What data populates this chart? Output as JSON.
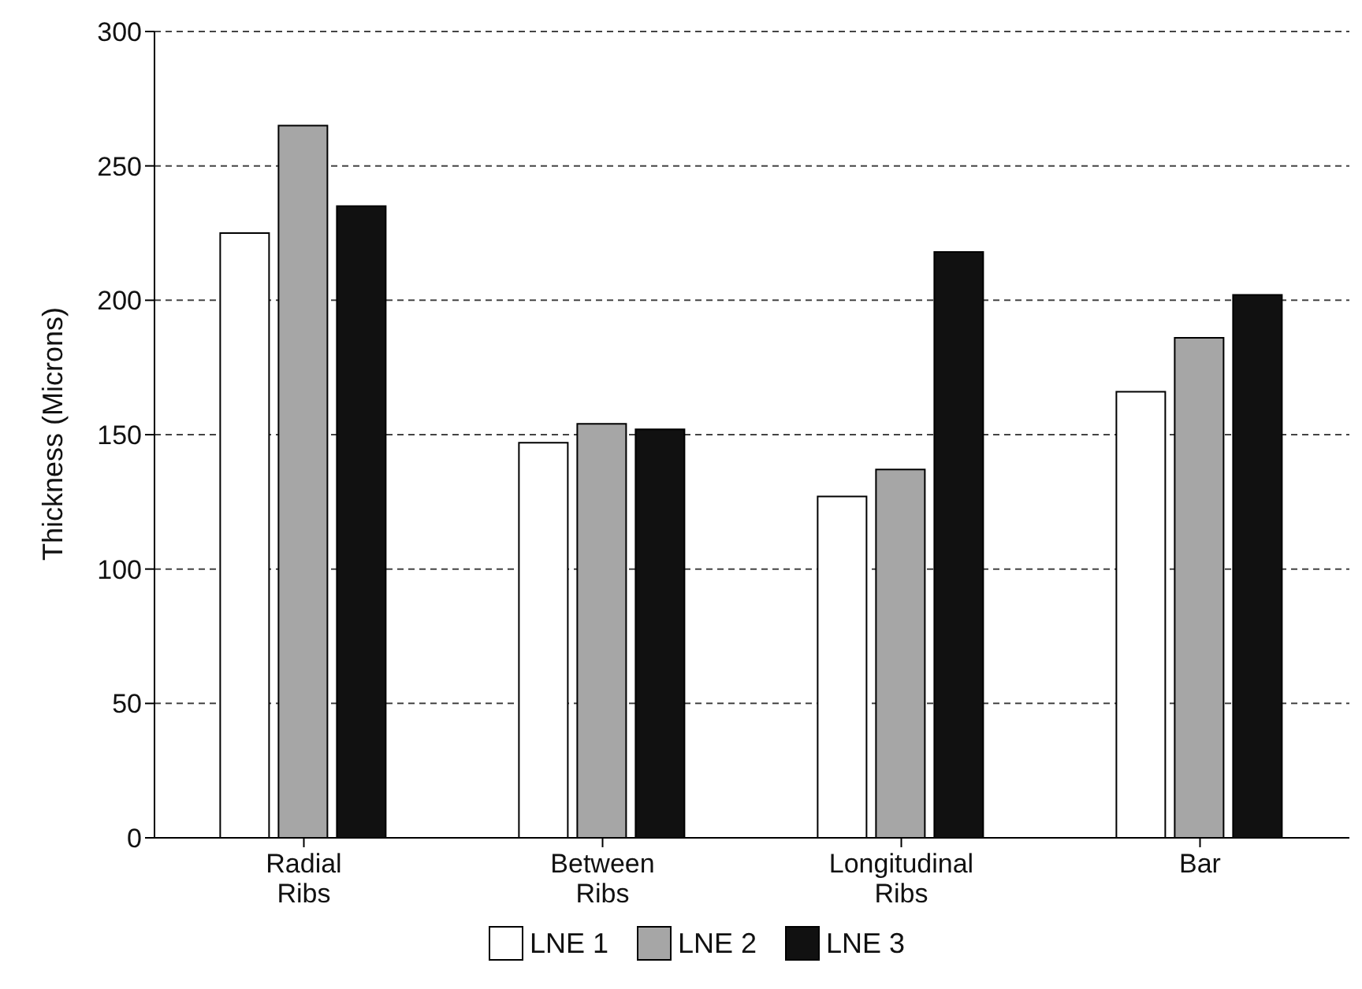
{
  "chart_data": {
    "type": "bar",
    "ylabel": "Thickness (Microns)",
    "categories": [
      "Radial\nRibs",
      "Between\nRibs",
      "Longitudinal\nRibs",
      "Bar"
    ],
    "series": [
      {
        "name": "LNE 1",
        "color": "#ffffff",
        "values": [
          225,
          147,
          127,
          166
        ]
      },
      {
        "name": "LNE 2",
        "color": "#a6a6a6",
        "values": [
          265,
          154,
          137,
          186
        ]
      },
      {
        "name": "LNE 3",
        "color": "#111111",
        "values": [
          235,
          152,
          218,
          202
        ]
      }
    ],
    "ylim": [
      0,
      300
    ],
    "yticks": [
      0,
      50,
      100,
      150,
      200,
      250,
      300
    ],
    "grid": "y",
    "legend": "bottom"
  }
}
